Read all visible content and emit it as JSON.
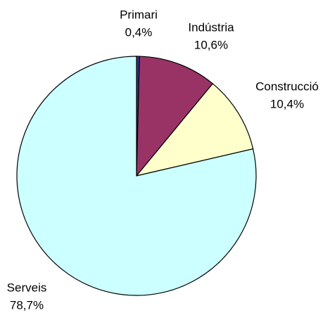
{
  "chart_data": {
    "type": "pie",
    "categories": [
      "Primari",
      "Indústria",
      "Construcció",
      "Serveis"
    ],
    "values": [
      0.4,
      10.6,
      10.4,
      78.7
    ],
    "value_labels": [
      "0,4%",
      "10,6%",
      "10,4%",
      "78,7%"
    ],
    "colors": [
      "#333399",
      "#993366",
      "#FFFFCC",
      "#CCFFFF"
    ]
  }
}
